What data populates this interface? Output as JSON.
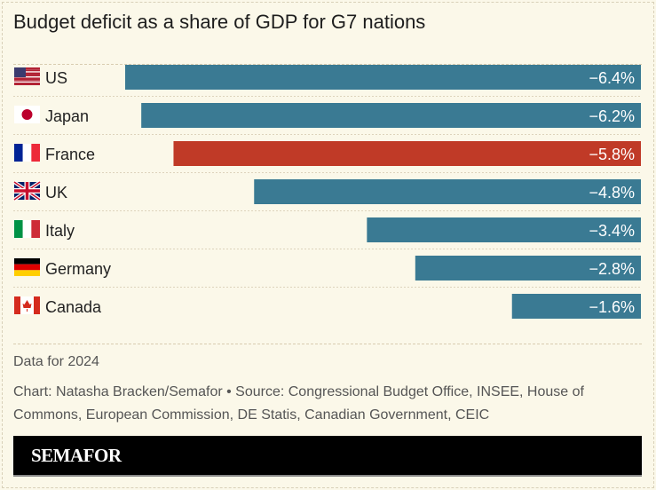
{
  "chart_data": {
    "type": "bar",
    "orientation": "horizontal",
    "title": "Budget deficit as a share of GDP for G7 nations",
    "categories": [
      "US",
      "Japan",
      "France",
      "UK",
      "Italy",
      "Germany",
      "Canada"
    ],
    "values": [
      -6.4,
      -6.2,
      -5.8,
      -4.8,
      -3.4,
      -2.8,
      -1.6
    ],
    "data_labels": [
      "−6.4%",
      "−6.2%",
      "−5.8%",
      "−4.8%",
      "−3.4%",
      "−2.8%",
      "−1.6%"
    ],
    "flags": [
      "us-flag-icon",
      "japan-flag-icon",
      "france-flag-icon",
      "uk-flag-icon",
      "italy-flag-icon",
      "germany-flag-icon",
      "canada-flag-icon"
    ],
    "highlight": "France",
    "colors": {
      "default": "#3a7a93",
      "highlight": "#c03a27"
    },
    "xlim": [
      -6.4,
      0
    ],
    "grid": false
  },
  "note": "Data for 2024",
  "source": "Chart: Natasha Bracken/Semafor • Source: Congressional Budget Office, INSEE, House of Commons, European Commission, DE Statis, Canadian Government, CEIC",
  "brand": "SEMAFOR"
}
